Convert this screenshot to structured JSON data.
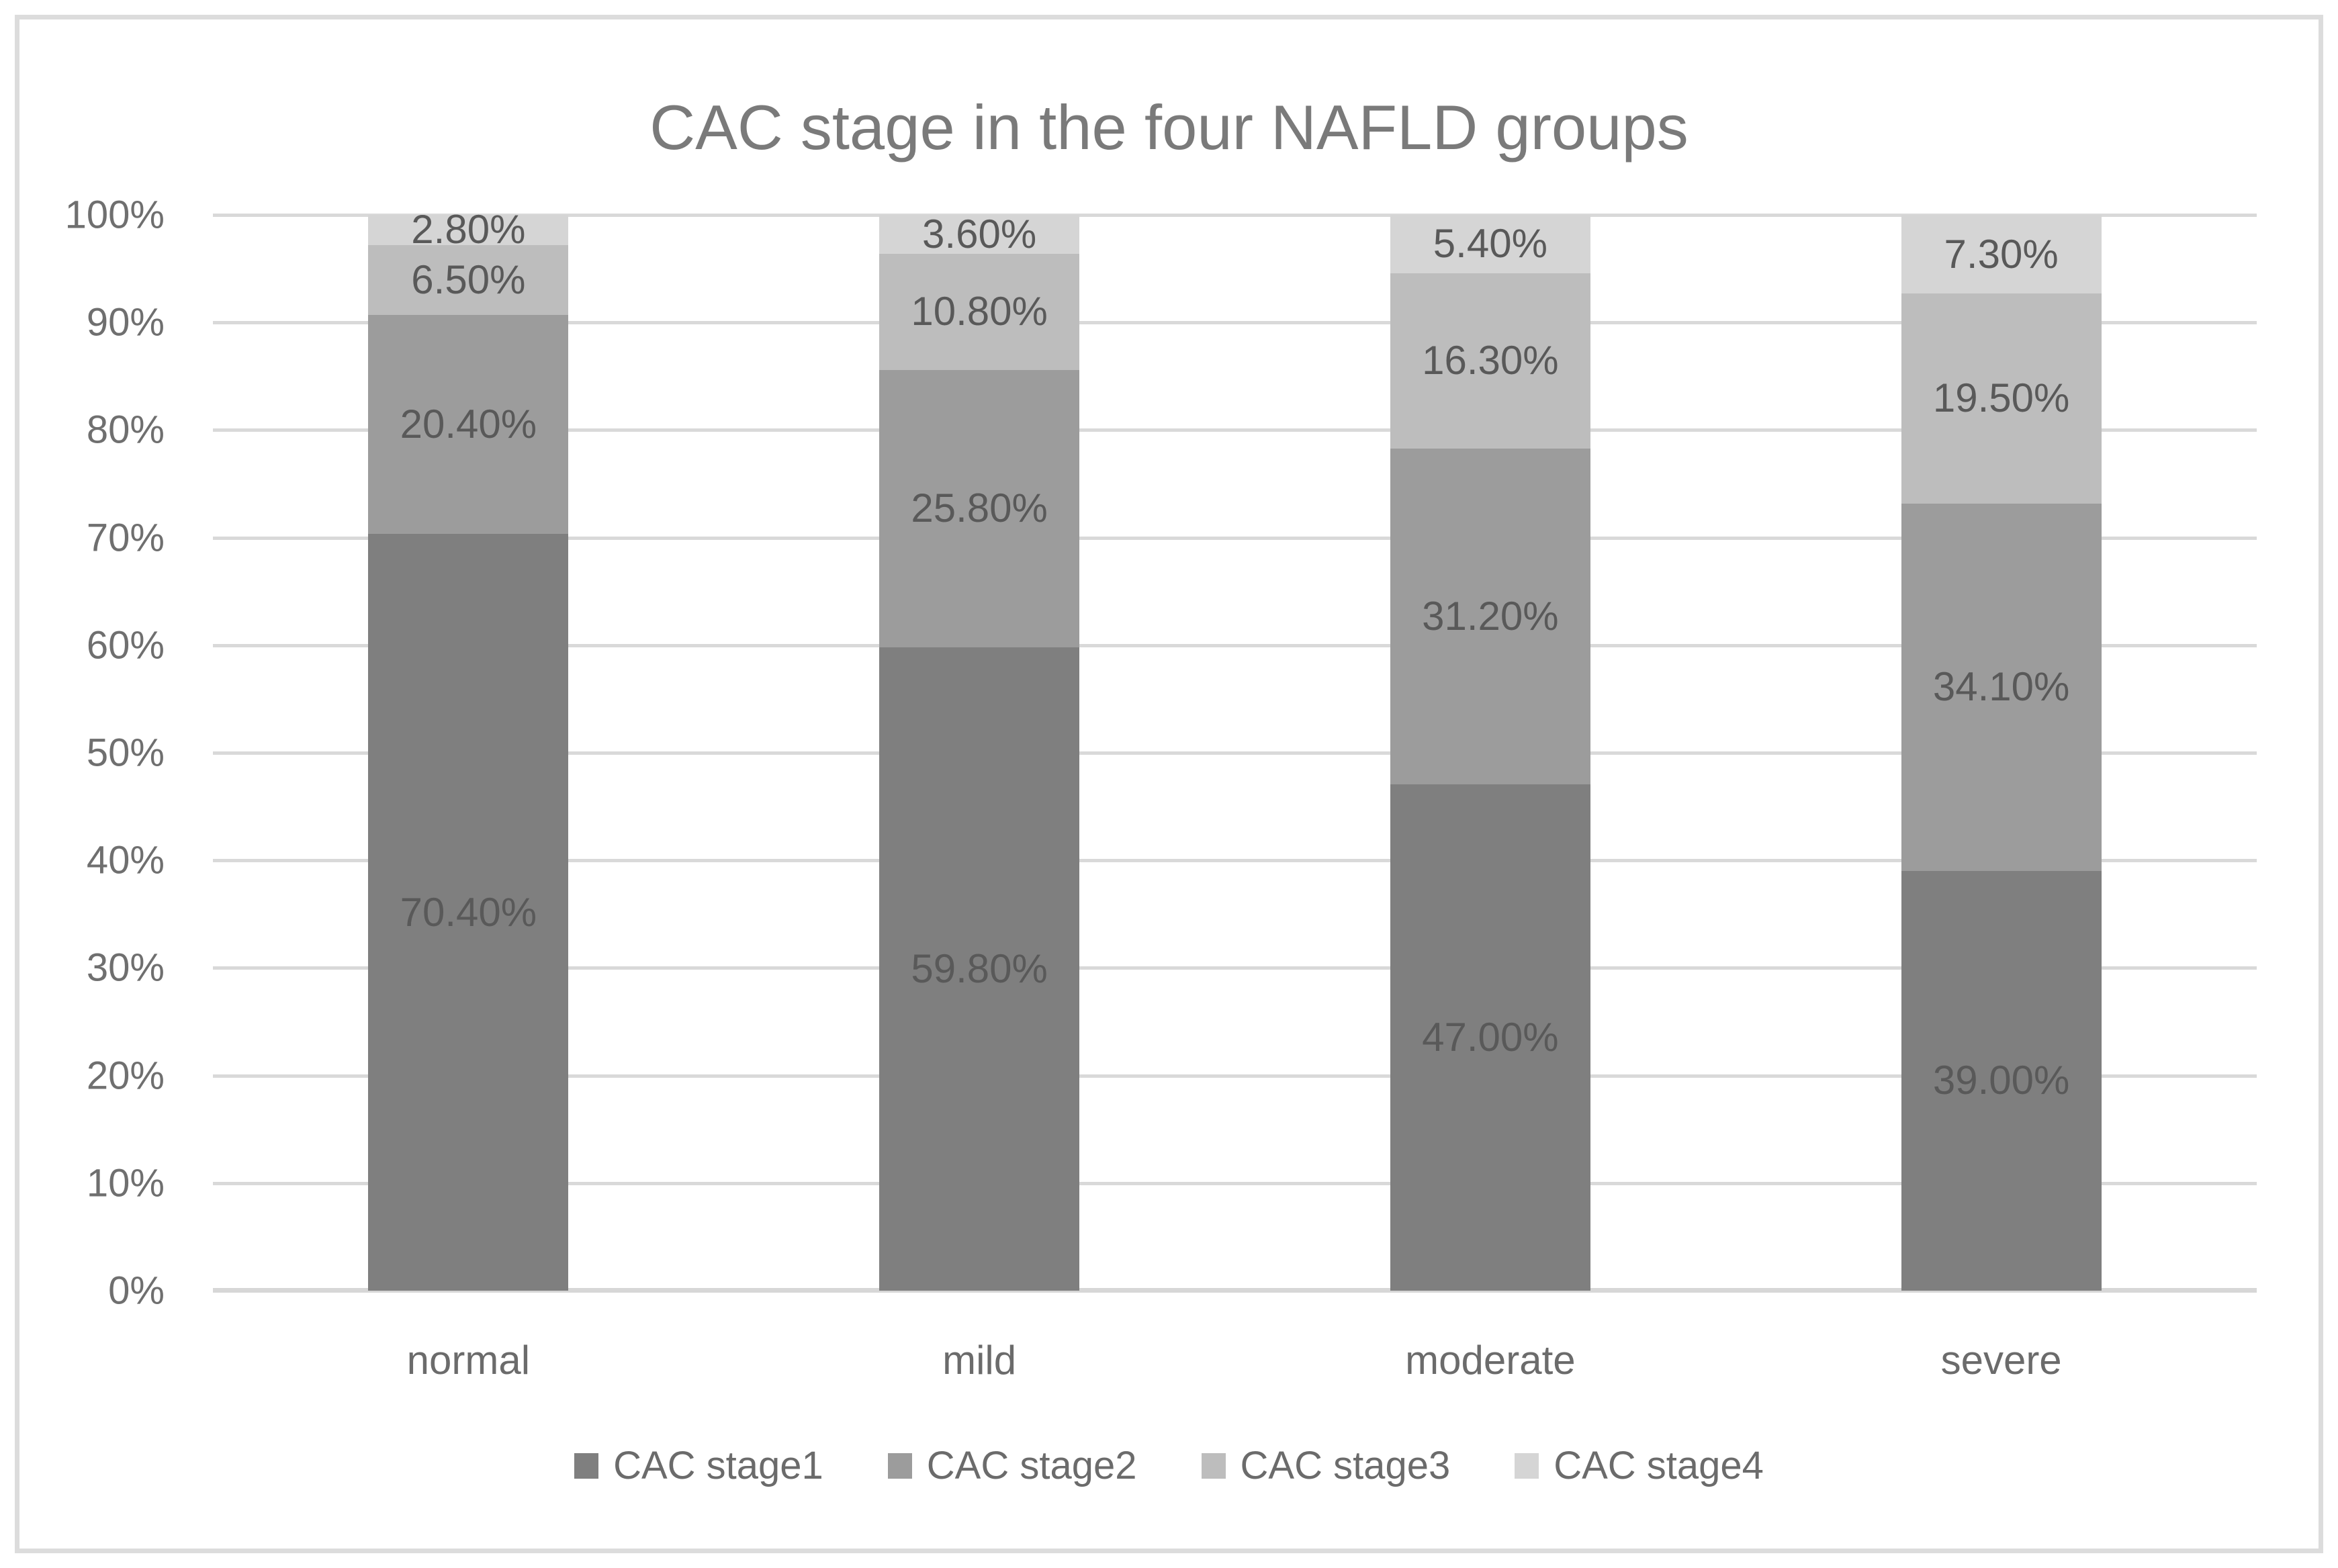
{
  "title": "CAC stage in the four NAFLD groups",
  "colors": {
    "stage1": "#7f7f7f",
    "stage2": "#9c9c9c",
    "stage3": "#bdbdbd",
    "stage4": "#d5d5d5",
    "gridline": "#d9d9d9",
    "axis_text": "#6f6f6f",
    "category_text": "#6b6b6b",
    "data_label_text": "#595959",
    "title_text": "#7a7a7a",
    "frame_border": "#dcdcdc",
    "background": "#ffffff"
  },
  "chart_data": {
    "type": "bar",
    "stacked": true,
    "percent_stacked": true,
    "title": "CAC stage in the four NAFLD groups",
    "categories": [
      "normal",
      "mild",
      "moderate",
      "severe"
    ],
    "series": [
      {
        "name": "CAC stage1",
        "color": "#7f7f7f",
        "values": [
          70.4,
          59.8,
          47.0,
          39.0
        ],
        "labels": [
          "70.40%",
          "59.80%",
          "47.00%",
          "39.00%"
        ]
      },
      {
        "name": "CAC stage2",
        "color": "#9c9c9c",
        "values": [
          20.4,
          25.8,
          31.2,
          34.1
        ],
        "labels": [
          "20.40%",
          "25.80%",
          "31.20%",
          "34.10%"
        ]
      },
      {
        "name": "CAC stage3",
        "color": "#bdbdbd",
        "values": [
          6.5,
          10.8,
          16.3,
          19.5
        ],
        "labels": [
          "6.50%",
          "10.80%",
          "16.30%",
          "19.50%"
        ]
      },
      {
        "name": "CAC stage4",
        "color": "#d5d5d5",
        "values": [
          2.8,
          3.6,
          5.4,
          7.3
        ],
        "labels": [
          "2.80%",
          "3.60%",
          "5.40%",
          "7.30%"
        ]
      }
    ],
    "y_axis": {
      "min": 0,
      "max": 100,
      "tick_step": 10,
      "tick_labels": [
        "0%",
        "10%",
        "20%",
        "30%",
        "40%",
        "50%",
        "60%",
        "70%",
        "80%",
        "90%",
        "100%"
      ],
      "grid": true
    },
    "legend": {
      "position": "bottom",
      "entries": [
        "CAC stage1",
        "CAC stage2",
        "CAC stage3",
        "CAC stage4"
      ]
    }
  }
}
